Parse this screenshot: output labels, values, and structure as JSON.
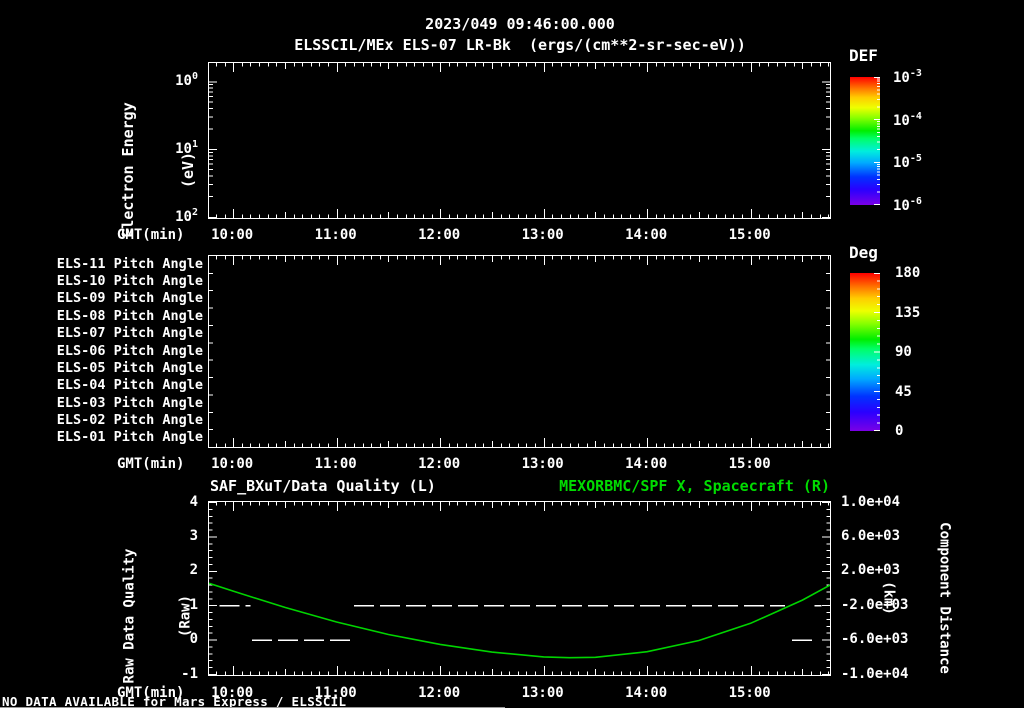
{
  "header": {
    "timestamp": "2023/049 09:46:00.000",
    "plot_title": "ELSSCIL/MEx ELS-07 LR-Bk  (ergs/(cm**2-sr-sec-eV))"
  },
  "time_axis": {
    "label": "GMT(min)",
    "start": "09:46",
    "end": "15:46",
    "tick_labels": [
      "10:00",
      "11:00",
      "12:00",
      "13:00",
      "14:00",
      "15:00"
    ]
  },
  "panels": {
    "spectrogram": {
      "ylabel_line1": "Electron Energy",
      "ylabel_line2": "(eV)",
      "ytick_exponents": [
        2,
        1,
        0
      ],
      "colorbar": {
        "title": "DEF",
        "tick_exponents": [
          -3,
          -4,
          -5,
          -6
        ]
      }
    },
    "pitch": {
      "row_labels": [
        "ELS-11 Pitch Angle",
        "ELS-10 Pitch Angle",
        "ELS-09 Pitch Angle",
        "ELS-08 Pitch Angle",
        "ELS-07 Pitch Angle",
        "ELS-06 Pitch Angle",
        "ELS-05 Pitch Angle",
        "ELS-04 Pitch Angle",
        "ELS-03 Pitch Angle",
        "ELS-02 Pitch Angle",
        "ELS-01 Pitch Angle"
      ],
      "colorbar": {
        "title": "Deg",
        "ticks": [
          "180",
          "135",
          "90",
          "45",
          "0"
        ]
      }
    },
    "timeseries": {
      "title_left": "SAF_BXuT/Data Quality (L)",
      "title_right": "MEXORBMC/SPF X, Spacecraft (R)",
      "ylabel_left_line1": "Raw Data Quality",
      "ylabel_left_line2": "(Raw)",
      "yticks_left": [
        "4",
        "3",
        "2",
        "1",
        "0",
        "-1"
      ],
      "ylabel_right_line1": "Component Distance",
      "ylabel_right_line2": "(km)",
      "yticks_right": [
        "1.0e+04",
        "6.0e+03",
        "2.0e+03",
        "-2.0e+03",
        "-6.0e+03",
        "-1.0e+04"
      ]
    }
  },
  "chart_data": [
    {
      "type": "heatmap",
      "title": "ELSSCIL/MEx ELS-07 LR-Bk electron energy spectrogram",
      "xlabel": "GMT(min)",
      "x_range": [
        "09:46",
        "15:46"
      ],
      "ylabel": "Electron Energy (eV)",
      "y_scale": "log",
      "y_range": [
        1,
        200
      ],
      "colorbar": {
        "label": "DEF",
        "units": "ergs/(cm**2-sr-sec-eV)",
        "scale": "log",
        "range": [
          1e-06,
          0.001
        ]
      },
      "values": "no data plotted (empty panel)"
    },
    {
      "type": "heatmap",
      "title": "ELS pitch angle panels",
      "xlabel": "GMT(min)",
      "x_range": [
        "09:46",
        "15:46"
      ],
      "rows": [
        "ELS-11",
        "ELS-10",
        "ELS-09",
        "ELS-08",
        "ELS-07",
        "ELS-06",
        "ELS-05",
        "ELS-04",
        "ELS-03",
        "ELS-02",
        "ELS-01"
      ],
      "colorbar": {
        "label": "Deg",
        "range": [
          0,
          180
        ]
      },
      "values": "no data plotted (empty panel)"
    },
    {
      "type": "line",
      "xlabel": "GMT(min)",
      "x_range": [
        "09:46",
        "15:46"
      ],
      "ylim_left": [
        -1,
        4
      ],
      "ylim_right": [
        -10000,
        10000
      ],
      "series": [
        {
          "name": "MEXORBMC/SPF X, Spacecraft (R)",
          "axis": "right",
          "style": "solid",
          "color": "#00d400",
          "points": [
            [
              "09:46",
              600
            ],
            [
              "10:00",
              -300
            ],
            [
              "10:15",
              -1250
            ],
            [
              "10:30",
              -2200
            ],
            [
              "11:00",
              -3900
            ],
            [
              "11:30",
              -5350
            ],
            [
              "12:00",
              -6500
            ],
            [
              "12:30",
              -7400
            ],
            [
              "13:00",
              -7950
            ],
            [
              "13:15",
              -8050
            ],
            [
              "13:30",
              -8000
            ],
            [
              "14:00",
              -7350
            ],
            [
              "14:30",
              -6050
            ],
            [
              "15:00",
              -4050
            ],
            [
              "15:30",
              -1350
            ],
            [
              "15:46",
              400
            ]
          ]
        },
        {
          "name": "SAF_BXuT/Data Quality (L)",
          "axis": "left",
          "style": "dashed",
          "color": "#ffffff",
          "segments": [
            {
              "value": 1,
              "from": "09:52",
              "to": "10:10"
            },
            {
              "value": 0,
              "from": "10:11",
              "to": "11:10"
            },
            {
              "value": 1,
              "from": "11:10",
              "to": "15:20"
            },
            {
              "value": 0,
              "from": "15:24",
              "to": "15:38"
            },
            {
              "value": 1,
              "from": "15:37",
              "to": "15:41"
            }
          ]
        }
      ]
    }
  ],
  "status_bar": {
    "message": "NO DATA AVAILABLE for Mars Express / ELSSCIL"
  },
  "colors": {
    "background": "#000000",
    "foreground": "#ffffff",
    "accent_green": "#00dc00"
  }
}
